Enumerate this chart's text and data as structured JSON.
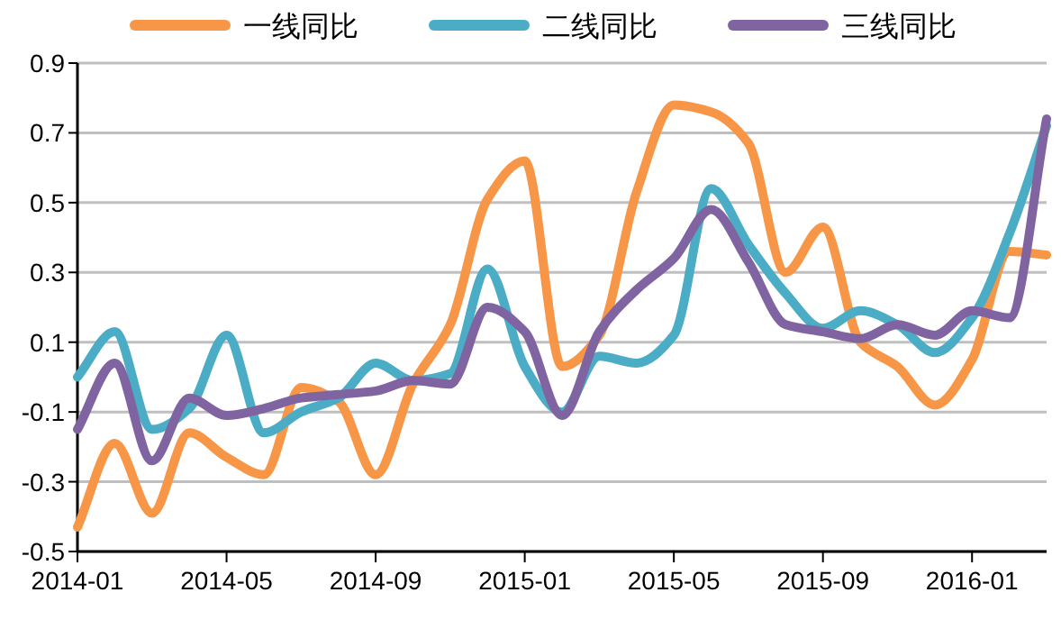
{
  "chart_data": {
    "type": "line",
    "categories": [
      "2014-01",
      null,
      null,
      null,
      "2014-05",
      null,
      null,
      null,
      "2014-09",
      null,
      null,
      null,
      "2015-01",
      null,
      null,
      null,
      "2015-05",
      null,
      null,
      null,
      "2015-09",
      null,
      null,
      null,
      "2016-01",
      null,
      null
    ],
    "series": [
      {
        "name": "一线同比",
        "color": "#f79646",
        "values": [
          -0.43,
          -0.19,
          -0.39,
          -0.16,
          -0.23,
          -0.28,
          -0.03,
          -0.07,
          -0.28,
          -0.02,
          0.15,
          0.51,
          0.62,
          0.03,
          0.12,
          0.53,
          0.78,
          0.76,
          0.67,
          0.3,
          0.43,
          0.1,
          0.03,
          -0.08,
          0.05,
          0.36,
          0.35
        ]
      },
      {
        "name": "二线同比",
        "color": "#4bacc6",
        "values": [
          0.0,
          0.13,
          -0.15,
          -0.09,
          0.12,
          -0.16,
          -0.1,
          -0.06,
          0.04,
          -0.01,
          0.01,
          0.31,
          0.03,
          -0.1,
          0.06,
          0.04,
          0.12,
          0.54,
          0.38,
          0.24,
          0.14,
          0.19,
          0.15,
          0.07,
          0.17,
          0.41,
          0.72
        ]
      },
      {
        "name": "三线同比",
        "color": "#8064a2",
        "values": [
          -0.15,
          0.04,
          -0.24,
          -0.06,
          -0.11,
          -0.09,
          -0.06,
          -0.05,
          -0.04,
          -0.01,
          -0.02,
          0.2,
          0.13,
          -0.11,
          0.13,
          0.25,
          0.34,
          0.48,
          0.33,
          0.15,
          0.13,
          0.11,
          0.15,
          0.12,
          0.19,
          0.17,
          0.74
        ]
      }
    ],
    "ylim": [
      -0.5,
      0.9
    ],
    "yticks": [
      -0.5,
      -0.3,
      -0.1,
      0.1,
      0.3,
      0.5,
      0.7,
      0.9
    ],
    "grid": "y",
    "legend": "top",
    "marker": "none",
    "line_style": "solid"
  }
}
